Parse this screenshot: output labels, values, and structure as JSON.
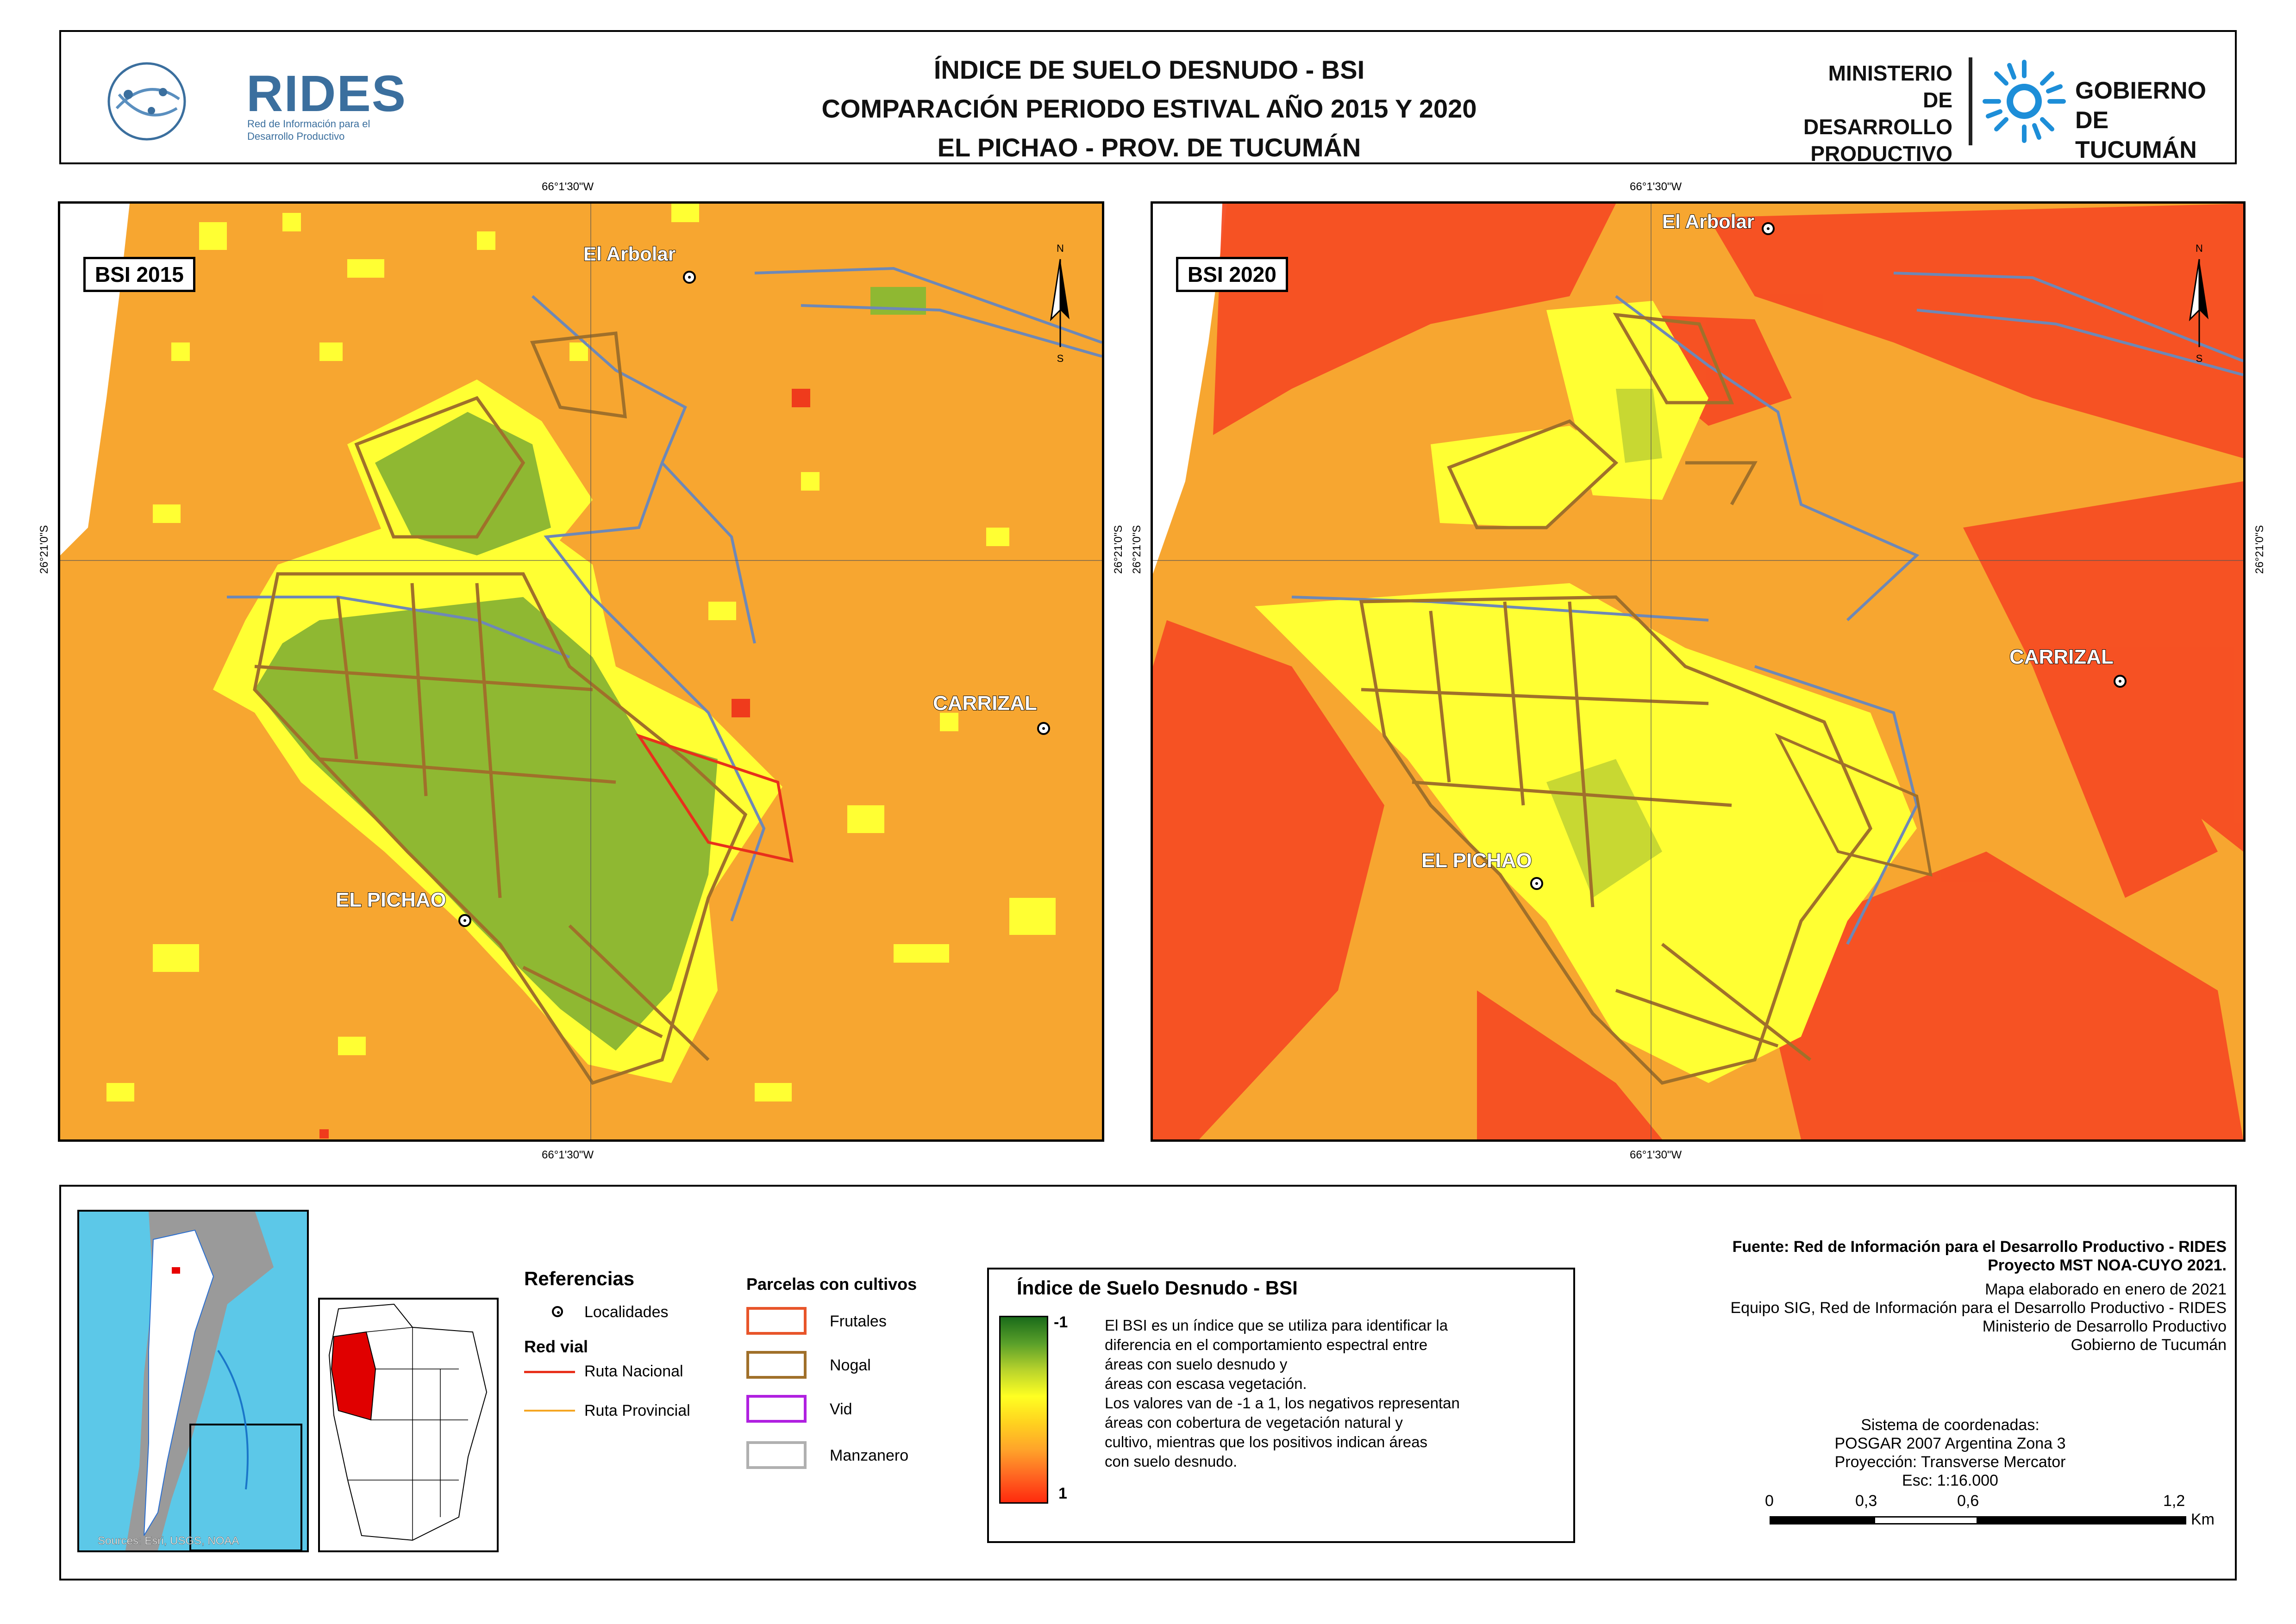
{
  "header": {
    "title_line1": "ÍNDICE DE SUELO DESNUDO - BSI",
    "title_line2": "COMPARACIÓN PERIODO ESTIVAL AÑO 2015 Y 2020",
    "title_line3": "EL PICHAO - PROV. DE TUCUMÁN",
    "rides_name": "RIDES",
    "rides_sub": "Red de Información para el Desarrollo Productivo",
    "ministry_line1": "MINISTERIO DE",
    "ministry_line2": "DESARROLLO",
    "ministry_line3": "PRODUCTIVO",
    "gob_line1": "GOBIERNO DE",
    "gob_line2": "TUCUMÁN",
    "logo_icon": "rides-globe-icon",
    "gob_icon": "tucuman-sun-icon"
  },
  "maps": {
    "left_label": "BSI 2015",
    "right_label": "BSI 2020",
    "coord_lon": "66°1'30\"W",
    "coord_lat": "26°21'0\"S",
    "north_n": "N",
    "north_s": "S",
    "places": {
      "arbolar": "El Arbolar",
      "carrizal": "CARRIZAL",
      "pichao": "EL PICHAO"
    }
  },
  "legend": {
    "references_title": "Referencias",
    "localidades": "Localidades",
    "red_vial": "Red vial",
    "ruta_nacional": "Ruta Nacional",
    "ruta_provincial": "Ruta Provincial",
    "parcelas_title": "Parcelas con cultivos",
    "frutales": "Frutales",
    "nogal": "Nogal",
    "vid": "Vid",
    "manzanero": "Manzanero",
    "sources": "Sources: Esri, USGS, NOAA",
    "colors": {
      "ruta_nacional": "#e8301c",
      "ruta_provincial": "#f5a623",
      "frutales": "#e8552a",
      "nogal": "#a0702a",
      "vid": "#b020e0",
      "manzanero": "#b0b0b0"
    }
  },
  "bsi": {
    "title": "Índice de Suelo Desnudo - BSI",
    "max_label": "-1",
    "min_label": "1",
    "desc1": "El BSI es un índice que se utiliza para identificar la",
    "desc2": "diferencia en el comportamiento espectral entre",
    "desc3": "áreas con suelo desnudo y",
    "desc4": "áreas con escasa vegetación.",
    "desc5": "Los valores van de -1 a 1, los negativos representan",
    "desc6": "áreas con cobertura de vegetación natural y",
    "desc7": "cultivo, mientras que los positivos indican áreas",
    "desc8": "con suelo desnudo."
  },
  "credits": {
    "fuente": "Fuente: Red de Información para el Desarrollo Productivo - RIDES",
    "proyecto": "Proyecto MST NOA-CUYO 2021.",
    "elaborado": "Mapa elaborado en enero de 2021",
    "equipo": "Equipo SIG, Red de Información para el Desarrollo Productivo - RIDES",
    "ministerio": "Ministerio de Desarrollo Productivo",
    "gobierno": "Gobierno de Tucumán",
    "sistema": "Sistema de coordenadas:",
    "posgar": "POSGAR 2007 Argentina Zona 3",
    "proyeccion": "Proyección: Transverse Mercator",
    "escala": "Esc: 1:16.000",
    "scale_ticks": [
      "0",
      "0,3",
      "0,6",
      "1,2"
    ],
    "scale_unit": "Km"
  }
}
